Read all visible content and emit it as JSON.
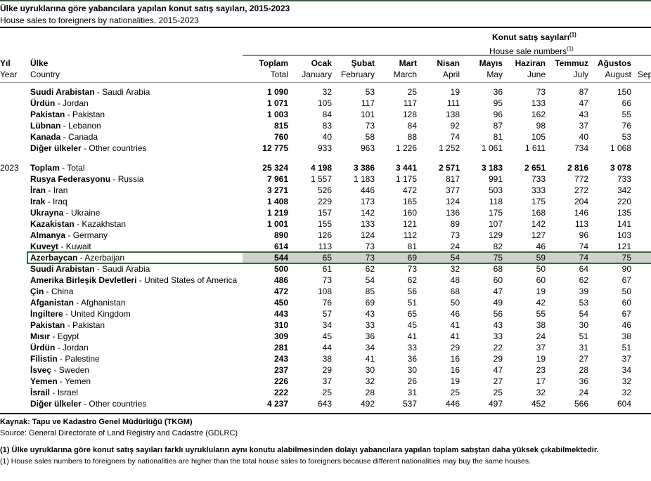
{
  "title_tr": "Ülke uyruklarına göre yabancılara yapılan konut satış sayıları, 2015-2023",
  "title_en": "House sales to foreigners by nationalities, 2015-2023",
  "group_header_tr": "Konut satış sayıları",
  "group_header_en": "House sale numbers",
  "footnote_mark": "(1)",
  "columns": {
    "year_tr": "Yıl",
    "year_en": "Year",
    "country_tr": "Ülke",
    "country_en": "Country",
    "months": [
      {
        "tr": "Toplam",
        "en": "Total"
      },
      {
        "tr": "Ocak",
        "en": "January"
      },
      {
        "tr": "Şubat",
        "en": "February"
      },
      {
        "tr": "Mart",
        "en": "March"
      },
      {
        "tr": "Nisan",
        "en": "April"
      },
      {
        "tr": "Mayıs",
        "en": "May"
      },
      {
        "tr": "Haziran",
        "en": "June"
      },
      {
        "tr": "Temmuz",
        "en": "July"
      },
      {
        "tr": "Ağustos",
        "en": "August"
      },
      {
        "tr": "",
        "en": "Sep"
      }
    ]
  },
  "rows_2022": [
    {
      "tr": "Suudi Arabistan",
      "en": "Saudi Arabia",
      "v": [
        "1 090",
        "32",
        "53",
        "25",
        "19",
        "36",
        "73",
        "87",
        "150"
      ]
    },
    {
      "tr": "Ürdün",
      "en": "Jordan",
      "v": [
        "1 071",
        "105",
        "117",
        "117",
        "111",
        "95",
        "133",
        "47",
        "66"
      ]
    },
    {
      "tr": "Pakistan",
      "en": "Pakistan",
      "v": [
        "1 003",
        "84",
        "101",
        "128",
        "138",
        "96",
        "162",
        "43",
        "55"
      ]
    },
    {
      "tr": "Lübnan",
      "en": "Lebanon",
      "v": [
        "815",
        "83",
        "73",
        "84",
        "92",
        "87",
        "98",
        "37",
        "76"
      ]
    },
    {
      "tr": "Kanada",
      "en": "Canada",
      "v": [
        "760",
        "40",
        "58",
        "88",
        "74",
        "81",
        "105",
        "40",
        "53"
      ]
    },
    {
      "tr": "Diğer ülkeler",
      "en": "Other countries",
      "v": [
        "12 775",
        "933",
        "963",
        "1 226",
        "1 252",
        "1 061",
        "1 611",
        "734",
        "1 068"
      ]
    }
  ],
  "year_2023": "2023",
  "rows_2023": [
    {
      "tr": "Toplam",
      "en": "Total",
      "v": [
        "25 324",
        "4 198",
        "3 386",
        "3 441",
        "2 571",
        "3 183",
        "2 651",
        "2 816",
        "3 078"
      ],
      "total": true
    },
    {
      "tr": "Rusya Federasyonu",
      "en": "Russia",
      "v": [
        "7 961",
        "1 557",
        "1 183",
        "1 175",
        "817",
        "991",
        "733",
        "772",
        "733"
      ]
    },
    {
      "tr": "İran",
      "en": "Iran",
      "v": [
        "3 271",
        "526",
        "446",
        "472",
        "377",
        "503",
        "333",
        "272",
        "342"
      ]
    },
    {
      "tr": "Irak",
      "en": "Iraq",
      "v": [
        "1 408",
        "229",
        "173",
        "165",
        "124",
        "118",
        "175",
        "204",
        "220"
      ]
    },
    {
      "tr": "Ukrayna",
      "en": "Ukraine",
      "v": [
        "1 219",
        "157",
        "142",
        "160",
        "136",
        "175",
        "168",
        "146",
        "135"
      ]
    },
    {
      "tr": "Kazakistan",
      "en": "Kazakhstan",
      "v": [
        "1 001",
        "155",
        "133",
        "121",
        "89",
        "107",
        "142",
        "113",
        "141"
      ]
    },
    {
      "tr": "Almanya",
      "en": "Germany",
      "v": [
        "890",
        "126",
        "124",
        "112",
        "73",
        "129",
        "127",
        "96",
        "103"
      ]
    },
    {
      "tr": "Kuveyt",
      "en": "Kuwait",
      "v": [
        "614",
        "113",
        "73",
        "81",
        "24",
        "82",
        "46",
        "74",
        "121"
      ]
    },
    {
      "tr": "Azerbaycan",
      "en": "Azerbaijan",
      "v": [
        "544",
        "65",
        "73",
        "69",
        "54",
        "75",
        "59",
        "74",
        "75"
      ],
      "selected": true
    },
    {
      "tr": "Suudi Arabistan",
      "en": "Saudi Arabia",
      "v": [
        "500",
        "61",
        "62",
        "73",
        "32",
        "68",
        "50",
        "64",
        "90"
      ]
    },
    {
      "tr": "Amerika Birleşik Devletleri",
      "en": "United States of America",
      "v": [
        "486",
        "73",
        "54",
        "62",
        "48",
        "60",
        "60",
        "62",
        "67"
      ]
    },
    {
      "tr": "Çin",
      "en": "China",
      "v": [
        "472",
        "108",
        "85",
        "56",
        "68",
        "47",
        "19",
        "39",
        "50"
      ]
    },
    {
      "tr": "Afganistan",
      "en": "Afghanistan",
      "v": [
        "450",
        "76",
        "69",
        "51",
        "50",
        "49",
        "42",
        "53",
        "60"
      ]
    },
    {
      "tr": "İngiltere",
      "en": "United Kingdom",
      "v": [
        "443",
        "57",
        "43",
        "65",
        "46",
        "56",
        "55",
        "54",
        "67"
      ]
    },
    {
      "tr": "Pakistan",
      "en": "Pakistan",
      "v": [
        "310",
        "34",
        "33",
        "45",
        "41",
        "43",
        "38",
        "30",
        "46"
      ]
    },
    {
      "tr": "Mısır",
      "en": "Egypt",
      "v": [
        "309",
        "45",
        "36",
        "41",
        "41",
        "33",
        "24",
        "51",
        "38"
      ]
    },
    {
      "tr": "Ürdün",
      "en": "Jordan",
      "v": [
        "281",
        "44",
        "34",
        "33",
        "29",
        "22",
        "37",
        "31",
        "51"
      ]
    },
    {
      "tr": "Filistin",
      "en": "Palestine",
      "v": [
        "243",
        "38",
        "41",
        "36",
        "16",
        "29",
        "19",
        "27",
        "37"
      ]
    },
    {
      "tr": "İsveç",
      "en": "Sweden",
      "v": [
        "237",
        "29",
        "30",
        "30",
        "16",
        "47",
        "23",
        "28",
        "34"
      ]
    },
    {
      "tr": "Yemen",
      "en": "Yemen",
      "v": [
        "226",
        "37",
        "32",
        "26",
        "19",
        "27",
        "17",
        "36",
        "32"
      ]
    },
    {
      "tr": "İsrail",
      "en": "Israel",
      "v": [
        "222",
        "25",
        "28",
        "31",
        "25",
        "25",
        "32",
        "24",
        "32"
      ]
    },
    {
      "tr": "Diğer ülkeler",
      "en": "Other countries",
      "v": [
        "4 237",
        "643",
        "492",
        "537",
        "446",
        "497",
        "452",
        "566",
        "604"
      ]
    }
  ],
  "source_tr": "Kaynak: Tapu ve Kadastro Genel Müdürlüğü (TKGM)",
  "source_en": "Source: General Directorate of Land Registry and Cadastre (GDLRC)",
  "note_tr": "(1) Ülke uyruklarına göre konut satış sayıları farklı uyrukluların aynı konutu alabilmesinden dolayı yabancılara yapılan toplam satıştan daha yüksek çıkabilmektedir.",
  "note_en": "(1) House sales numbers to foreigners by nationalities are higher than the total house sales to foreigners because different nationalities may buy the same houses.",
  "colors": {
    "highlight": "#d0d0d0",
    "selection_border": "#2e6b3f"
  }
}
